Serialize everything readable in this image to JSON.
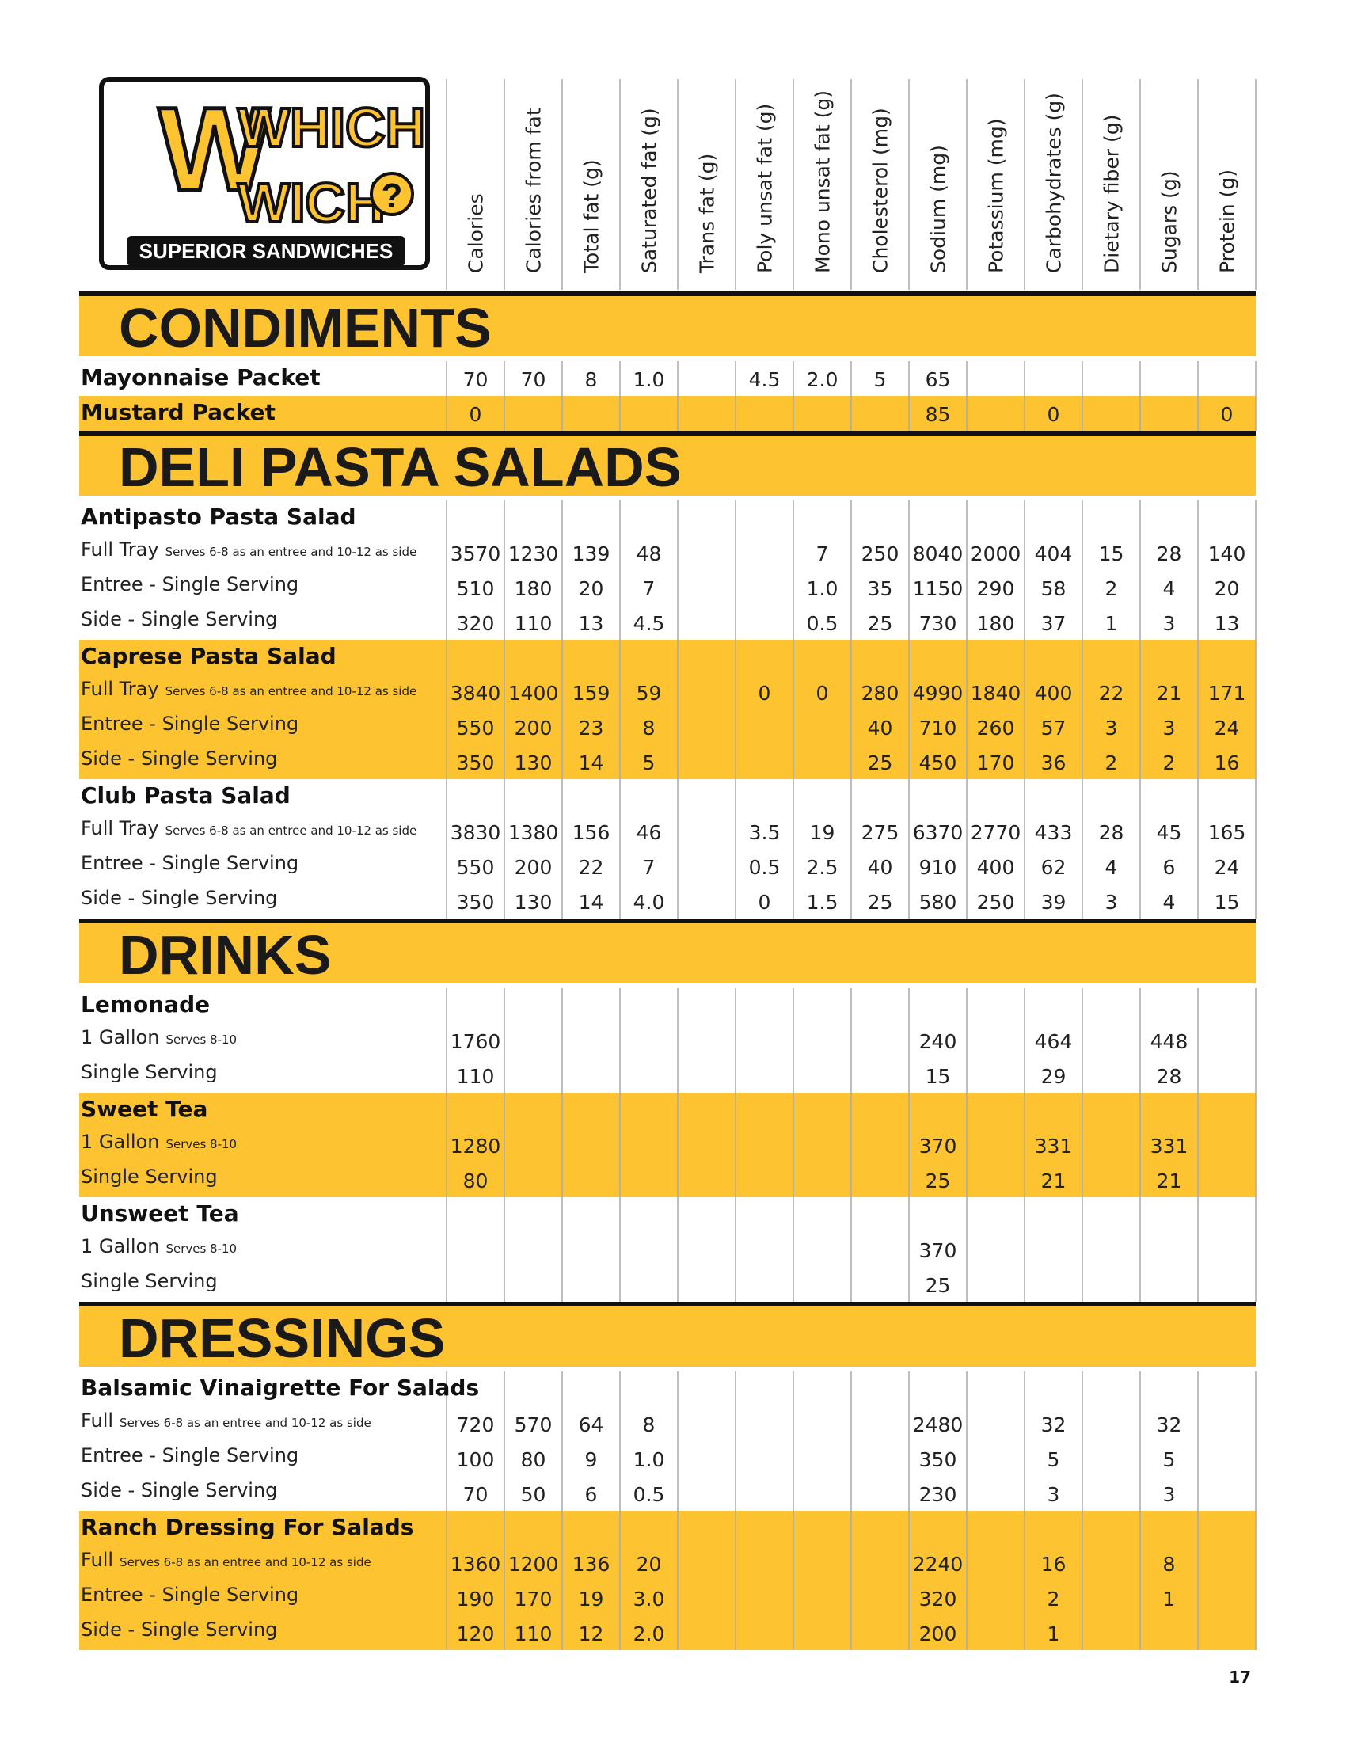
{
  "logo": {
    "word1": "WHICH",
    "word2": "WICH",
    "mark": "?",
    "tagline": "SUPERIOR SANDWICHES"
  },
  "columns": [
    "Calories",
    "Calories from fat",
    "Total fat (g)",
    "Saturated fat (g)",
    "Trans fat (g)",
    "Poly unsat fat (g)",
    "Mono unsat fat (g)",
    "Cholesterol (mg)",
    "Sodium (mg)",
    "Potassium (mg)",
    "Carbohydrates (g)",
    "Dietary fiber (g)",
    "Sugars (g)",
    "Protein (g)"
  ],
  "highlight_color": "#fdc331",
  "sections": [
    {
      "title": "CONDIMENTS",
      "groups": [
        {
          "name": "Mayonnaise Packet",
          "highlight": false,
          "values": [
            "70",
            "70",
            "8",
            "1.0",
            null,
            "4.5",
            "2.0",
            "5",
            "65",
            null,
            null,
            null,
            null,
            null
          ]
        },
        {
          "name": "Mustard Packet",
          "highlight": true,
          "values": [
            "0",
            null,
            null,
            null,
            null,
            null,
            null,
            null,
            "85",
            null,
            "0",
            null,
            null,
            "0"
          ]
        }
      ]
    },
    {
      "title": "DELI PASTA SALADS",
      "groups": [
        {
          "name": "Antipasto Pasta Salad",
          "highlight": false,
          "rows": [
            {
              "label": "Full Tray",
              "note": "Serves 6-8 as an entree  and 10-12 as side",
              "values": [
                "3570",
                "1230",
                "139",
                "48",
                null,
                null,
                "7",
                "250",
                "8040",
                "2000",
                "404",
                "15",
                "28",
                "140"
              ]
            },
            {
              "label": "Entree - Single Serving",
              "values": [
                "510",
                "180",
                "20",
                "7",
                null,
                null,
                "1.0",
                "35",
                "1150",
                "290",
                "58",
                "2",
                "4",
                "20"
              ]
            },
            {
              "label": "Side - Single Serving",
              "values": [
                "320",
                "110",
                "13",
                "4.5",
                null,
                null,
                "0.5",
                "25",
                "730",
                "180",
                "37",
                "1",
                "3",
                "13"
              ]
            }
          ]
        },
        {
          "name": "Caprese Pasta Salad",
          "highlight": true,
          "rows": [
            {
              "label": "Full Tray",
              "note": "Serves 6-8 as an entree  and 10-12 as side",
              "values": [
                "3840",
                "1400",
                "159",
                "59",
                null,
                "0",
                "0",
                "280",
                "4990",
                "1840",
                "400",
                "22",
                "21",
                "171"
              ]
            },
            {
              "label": "Entree - Single Serving",
              "values": [
                "550",
                "200",
                "23",
                "8",
                null,
                null,
                null,
                "40",
                "710",
                "260",
                "57",
                "3",
                "3",
                "24"
              ]
            },
            {
              "label": "Side - Single Serving",
              "values": [
                "350",
                "130",
                "14",
                "5",
                null,
                null,
                null,
                "25",
                "450",
                "170",
                "36",
                "2",
                "2",
                "16"
              ]
            }
          ]
        },
        {
          "name": "Club Pasta Salad",
          "highlight": false,
          "rows": [
            {
              "label": "Full Tray",
              "note": "Serves 6-8 as an entree  and 10-12 as side",
              "values": [
                "3830",
                "1380",
                "156",
                "46",
                null,
                "3.5",
                "19",
                "275",
                "6370",
                "2770",
                "433",
                "28",
                "45",
                "165"
              ]
            },
            {
              "label": "Entree - Single Serving",
              "values": [
                "550",
                "200",
                "22",
                "7",
                null,
                "0.5",
                "2.5",
                "40",
                "910",
                "400",
                "62",
                "4",
                "6",
                "24"
              ]
            },
            {
              "label": "Side - Single Serving",
              "values": [
                "350",
                "130",
                "14",
                "4.0",
                null,
                "0",
                "1.5",
                "25",
                "580",
                "250",
                "39",
                "3",
                "4",
                "15"
              ]
            }
          ]
        }
      ]
    },
    {
      "title": "DRINKS",
      "groups": [
        {
          "name": "Lemonade",
          "highlight": false,
          "rows": [
            {
              "label": "1 Gallon",
              "note": "Serves 8-10",
              "values": [
                "1760",
                null,
                null,
                null,
                null,
                null,
                null,
                null,
                "240",
                null,
                "464",
                null,
                "448",
                null
              ]
            },
            {
              "label": "Single Serving",
              "values": [
                "110",
                null,
                null,
                null,
                null,
                null,
                null,
                null,
                "15",
                null,
                "29",
                null,
                "28",
                null
              ]
            }
          ]
        },
        {
          "name": "Sweet Tea",
          "highlight": true,
          "rows": [
            {
              "label": "1 Gallon",
              "note": "Serves 8-10",
              "values": [
                "1280",
                null,
                null,
                null,
                null,
                null,
                null,
                null,
                "370",
                null,
                "331",
                null,
                "331",
                null
              ]
            },
            {
              "label": "Single Serving",
              "values": [
                "80",
                null,
                null,
                null,
                null,
                null,
                null,
                null,
                "25",
                null,
                "21",
                null,
                "21",
                null
              ]
            }
          ]
        },
        {
          "name": "Unsweet Tea",
          "highlight": false,
          "rows": [
            {
              "label": "1 Gallon",
              "note": "Serves 8-10",
              "values": [
                null,
                null,
                null,
                null,
                null,
                null,
                null,
                null,
                "370",
                null,
                null,
                null,
                null,
                null
              ]
            },
            {
              "label": "Single Serving",
              "values": [
                null,
                null,
                null,
                null,
                null,
                null,
                null,
                null,
                "25",
                null,
                null,
                null,
                null,
                null
              ]
            }
          ]
        }
      ]
    },
    {
      "title": "DRESSINGS",
      "groups": [
        {
          "name": "Balsamic Vinaigrette For Salads",
          "highlight": false,
          "rows": [
            {
              "label": "Full",
              "note": "Serves 6-8 as an entree  and 10-12 as side",
              "values": [
                "720",
                "570",
                "64",
                "8",
                null,
                null,
                null,
                null,
                "2480",
                null,
                "32",
                null,
                "32",
                null
              ]
            },
            {
              "label": "Entree - Single Serving",
              "values": [
                "100",
                "80",
                "9",
                "1.0",
                null,
                null,
                null,
                null,
                "350",
                null,
                "5",
                null,
                "5",
                null
              ]
            },
            {
              "label": "Side - Single Serving",
              "values": [
                "70",
                "50",
                "6",
                "0.5",
                null,
                null,
                null,
                null,
                "230",
                null,
                "3",
                null,
                "3",
                null
              ]
            }
          ]
        },
        {
          "name": "Ranch Dressing For Salads",
          "highlight": true,
          "rows": [
            {
              "label": "Full",
              "note": "Serves 6-8 as an entree  and 10-12 as side",
              "values": [
                "1360",
                "1200",
                "136",
                "20",
                null,
                null,
                null,
                null,
                "2240",
                null,
                "16",
                null,
                "8",
                null
              ]
            },
            {
              "label": "Entree - Single Serving",
              "values": [
                "190",
                "170",
                "19",
                "3.0",
                null,
                null,
                null,
                null,
                "320",
                null,
                "2",
                null,
                "1",
                null
              ]
            },
            {
              "label": "Side - Single Serving",
              "values": [
                "120",
                "110",
                "12",
                "2.0",
                null,
                null,
                null,
                null,
                "200",
                null,
                "1",
                null,
                null,
                null
              ]
            }
          ]
        }
      ]
    }
  ],
  "page_number": "17"
}
